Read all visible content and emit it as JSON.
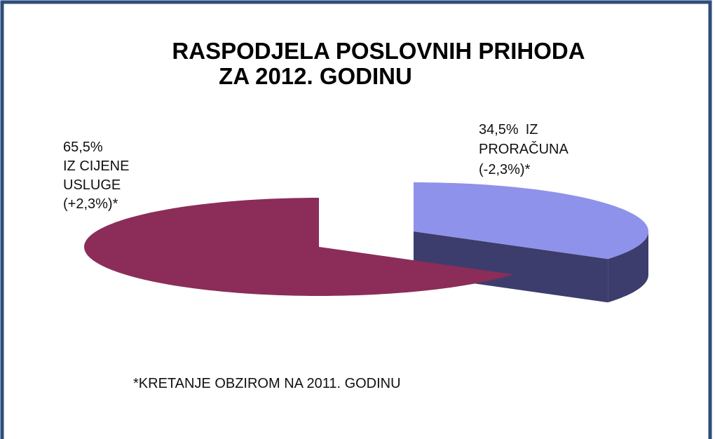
{
  "chart_data": {
    "type": "pie",
    "title": [
      "RASPODJELA   POSLOVNIH   PRIHODA",
      "ZA 2012. GODINU"
    ],
    "categories": [
      [
        "IZ CIJENE",
        "USLUGE"
      ],
      [
        "IZ",
        "PRORAČUNA"
      ]
    ],
    "values": [
      65.5,
      34.5
    ],
    "value_labels": [
      "65,5%",
      "34,5%"
    ],
    "change_labels": [
      "(+2,3%)*",
      "(-2,3%)*"
    ],
    "colors": [
      "#8b2d58",
      "#8f92ea"
    ],
    "side_colors": [
      "#5e1c3b",
      "#3c3d6c"
    ],
    "footnote": "*KRETANJE OBZIROM NA 2011. GODINU"
  }
}
